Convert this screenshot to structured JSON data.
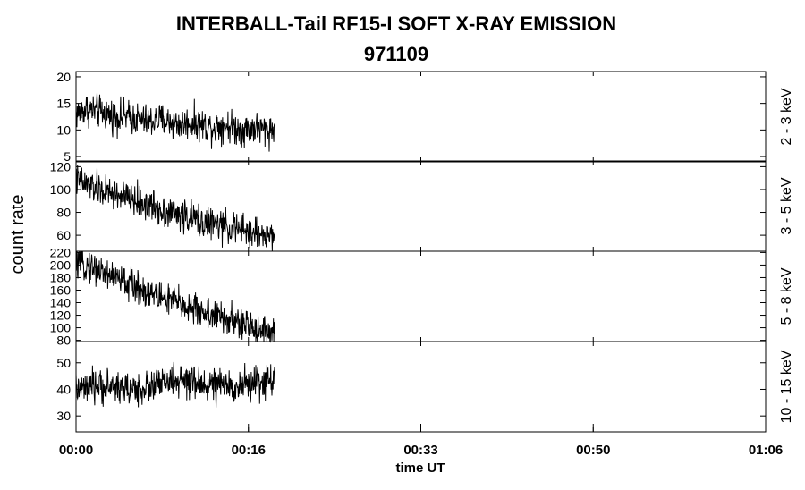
{
  "chart_data": {
    "type": "line",
    "title": "INTERBALL-Tail RF15-I SOFT X-RAY EMISSION",
    "subtitle": "971109",
    "ylabel": "count rate",
    "xlabel": "time UT",
    "x_ticks": [
      "00:00",
      "00:16",
      "00:33",
      "00:50",
      "01:06"
    ],
    "x_tick_minutes": [
      0,
      16.5,
      33,
      49.5,
      66
    ],
    "xlim_minutes": [
      0,
      66
    ],
    "data_end_minute": 19,
    "line_color": "#000000",
    "grid": false,
    "panels": [
      {
        "name": "2 - 3 keV",
        "ylim": [
          4,
          21
        ],
        "y_ticks": [
          5,
          10,
          15,
          20
        ],
        "x_minutes": [
          0,
          1,
          2,
          3,
          4,
          5,
          6,
          7,
          8,
          9,
          10,
          11,
          12,
          13,
          14,
          15,
          16,
          17,
          18,
          19
        ],
        "values": [
          13,
          14,
          13.5,
          13,
          12.5,
          12.5,
          12,
          11.5,
          12,
          11.5,
          11,
          11.5,
          11,
          10.5,
          11,
          10.5,
          10,
          10.5,
          10,
          10
        ]
      },
      {
        "name": "3 - 5 keV",
        "ylim": [
          46,
          125
        ],
        "y_ticks": [
          60,
          80,
          100,
          120
        ],
        "x_minutes": [
          0,
          1,
          2,
          3,
          4,
          5,
          6,
          7,
          8,
          9,
          10,
          11,
          12,
          13,
          14,
          15,
          16,
          17,
          18,
          19
        ],
        "values": [
          108,
          104,
          101,
          97,
          95,
          92,
          89,
          86,
          83,
          80,
          78,
          75,
          72,
          70,
          68,
          66,
          64,
          62,
          60,
          59
        ]
      },
      {
        "name": "5 - 8 keV",
        "ylim": [
          78,
          222
        ],
        "y_ticks": [
          80,
          100,
          120,
          140,
          160,
          180,
          200,
          220
        ],
        "x_minutes": [
          0,
          1,
          2,
          3,
          4,
          5,
          6,
          7,
          8,
          9,
          10,
          11,
          12,
          13,
          14,
          15,
          16,
          17,
          18,
          19
        ],
        "values": [
          205,
          200,
          193,
          186,
          178,
          170,
          163,
          156,
          150,
          144,
          138,
          132,
          126,
          120,
          115,
          110,
          105,
          100,
          96,
          92
        ]
      },
      {
        "name": "10 - 15 keV",
        "ylim": [
          24,
          58
        ],
        "y_ticks": [
          30,
          40,
          50
        ],
        "x_minutes": [
          0,
          1,
          2,
          3,
          4,
          5,
          6,
          7,
          8,
          9,
          10,
          11,
          12,
          13,
          14,
          15,
          16,
          17,
          18,
          19
        ],
        "values": [
          40,
          40,
          41,
          41,
          41,
          40,
          40,
          41,
          42,
          43,
          43,
          42,
          42,
          42,
          41,
          41,
          42,
          42,
          43,
          44
        ]
      }
    ]
  }
}
